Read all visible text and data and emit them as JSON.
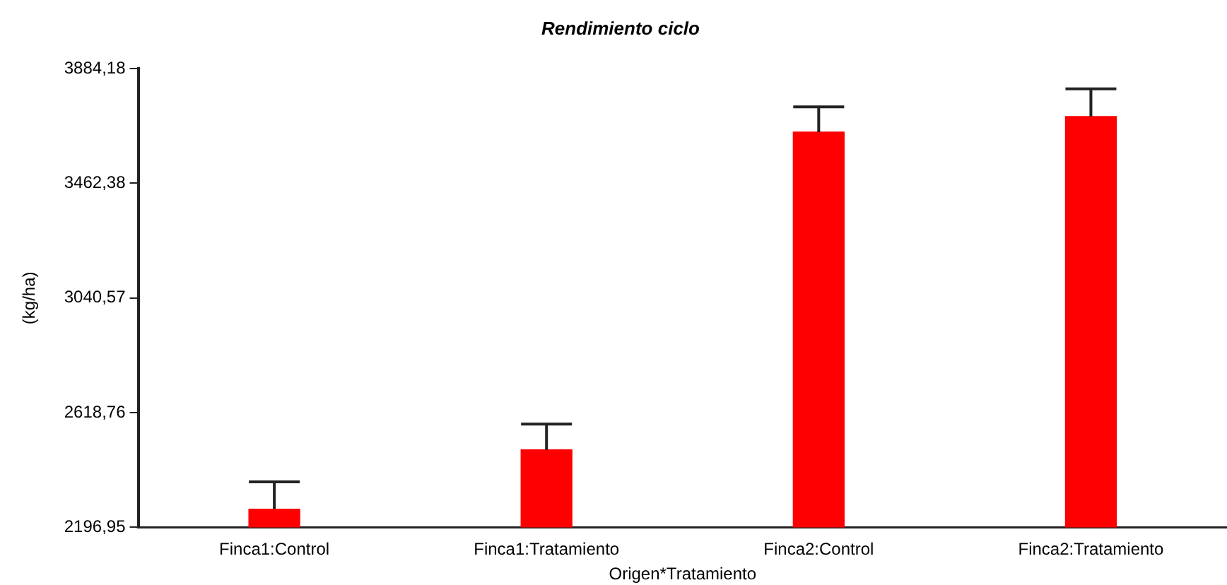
{
  "chart_data": {
    "type": "bar",
    "title": "Rendimiento ciclo",
    "xlabel": "Origen*Tratamiento",
    "ylabel": "(kg/ha)",
    "categories": [
      "Finca1:Control",
      "Finca1:Tratamiento",
      "Finca2:Control",
      "Finca2:Tratamiento"
    ],
    "values": [
      2264,
      2482,
      3651,
      3708
    ],
    "errors": [
      [
        2264,
        2364
      ],
      [
        2482,
        2577
      ],
      [
        3651,
        3744
      ],
      [
        3708,
        3810
      ]
    ],
    "color": "#ff0000",
    "ylim": [
      2196.95,
      3884.18
    ],
    "yticks": [
      {
        "value": 2196.95,
        "label": "2196,95"
      },
      {
        "value": 2618.76,
        "label": "2618,76"
      },
      {
        "value": 3040.57,
        "label": "3040,57"
      },
      {
        "value": 3462.38,
        "label": "3462,38"
      },
      {
        "value": 3884.18,
        "label": "3884,18"
      }
    ],
    "grid": false,
    "legend": false
  }
}
